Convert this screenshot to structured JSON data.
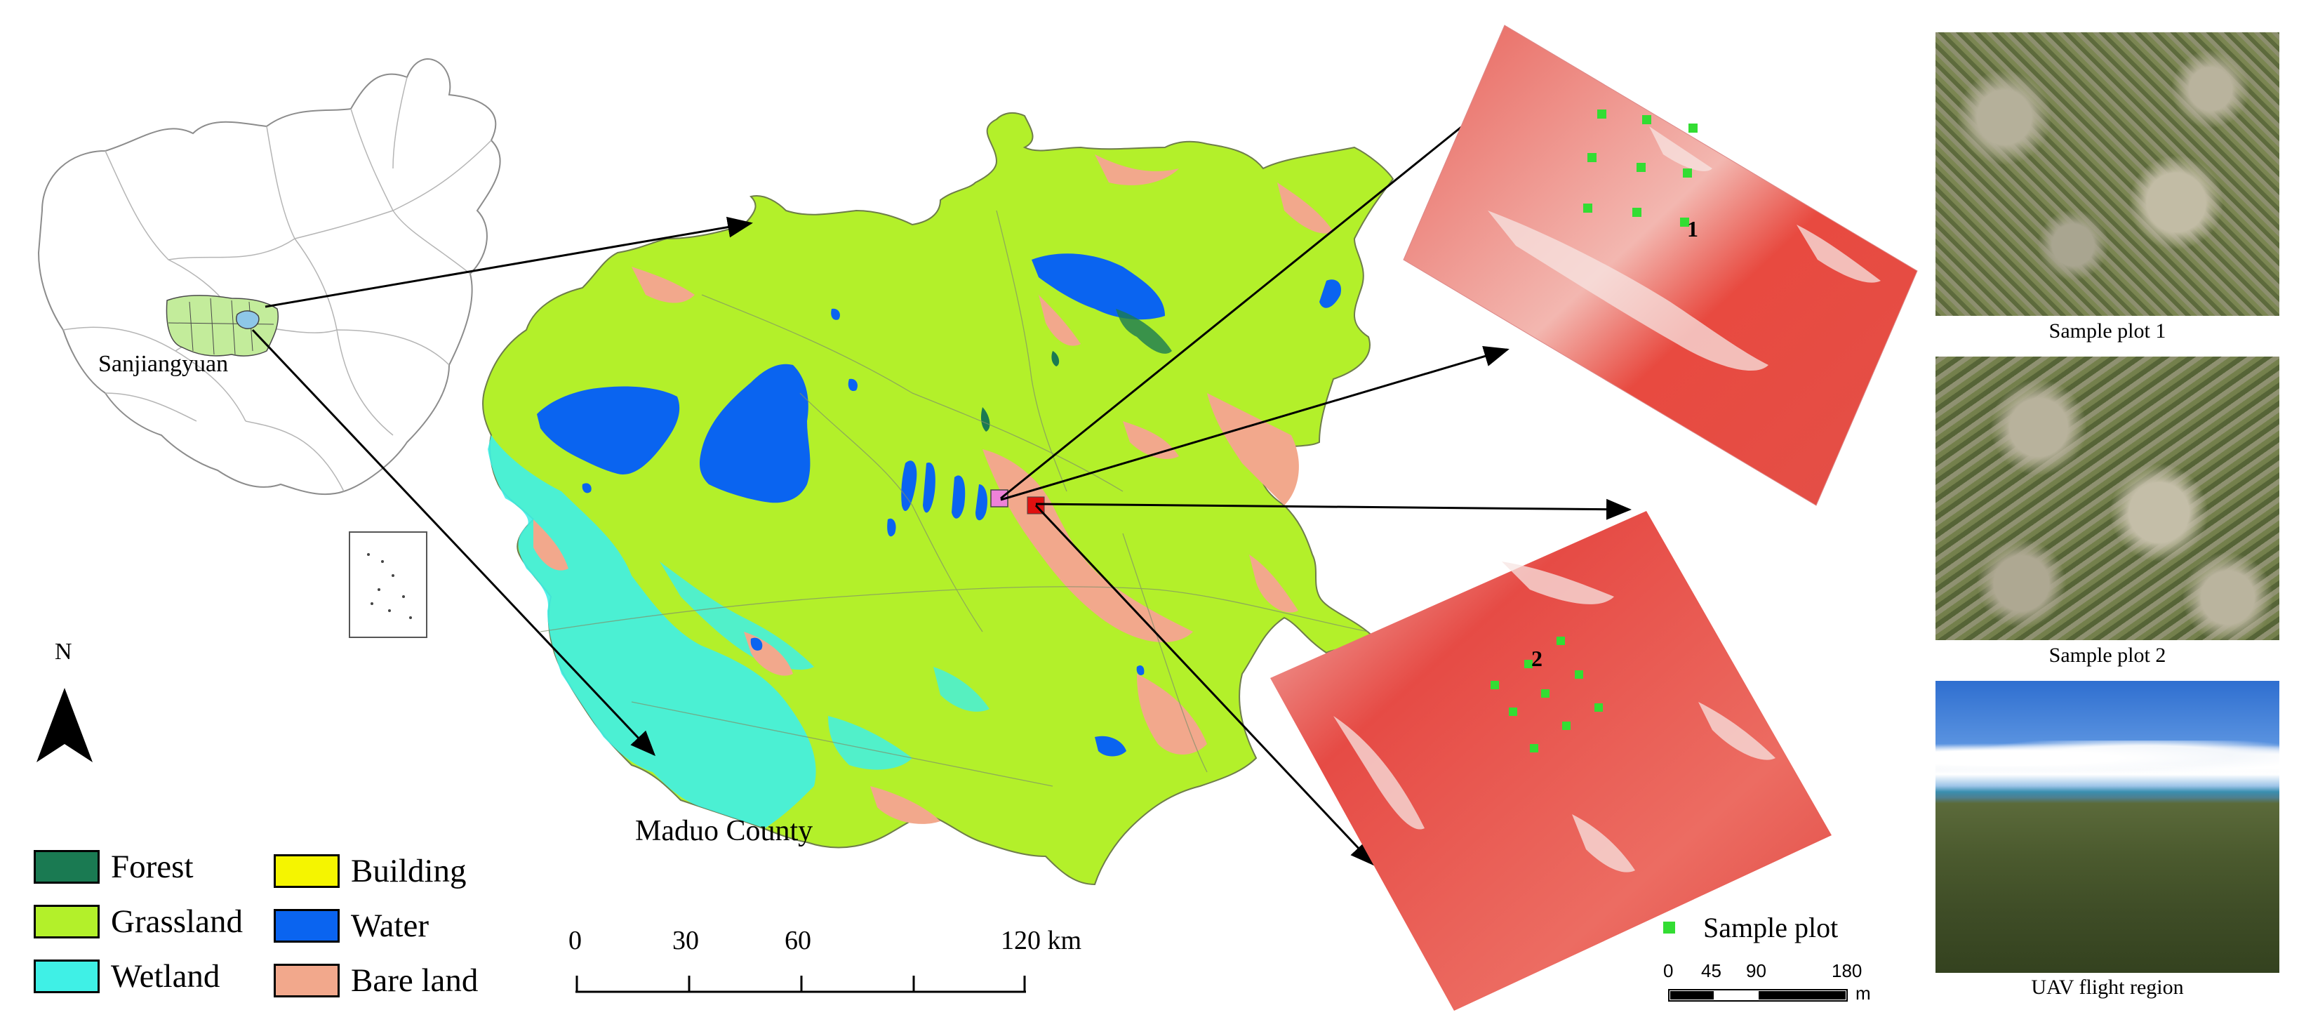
{
  "locator": {
    "region_label": "Sanjiangyuan"
  },
  "north_arrow": {
    "label": "N",
    "icon": "north-arrow-icon"
  },
  "county": {
    "label": "Maduo County"
  },
  "legend": [
    {
      "label": "Forest",
      "color": "#1a7a52"
    },
    {
      "label": "Grassland",
      "color": "#b3f02a"
    },
    {
      "label": "Wetland",
      "color": "#3ff0e6"
    },
    {
      "label": "Building",
      "color": "#f5f500"
    },
    {
      "label": "Water",
      "color": "#0a64f0"
    },
    {
      "label": "Bare land",
      "color": "#f2a88c"
    }
  ],
  "main_scale": {
    "ticks": [
      "0",
      "30",
      "60",
      "120 km"
    ]
  },
  "uav_images": {
    "image1_plot_number": "1",
    "image2_plot_number": "2",
    "sample_plot_label": "Sample plot",
    "sample_plot_color": "#33dd33",
    "scale_ticks": [
      "0",
      "45",
      "90",
      "180"
    ],
    "scale_unit": "m"
  },
  "photos": [
    {
      "caption": "Sample plot 1"
    },
    {
      "caption": "Sample plot 2"
    },
    {
      "caption": "UAV flight region"
    }
  ],
  "markers": {
    "pink": "#ee82d8",
    "red": "#e01010"
  }
}
